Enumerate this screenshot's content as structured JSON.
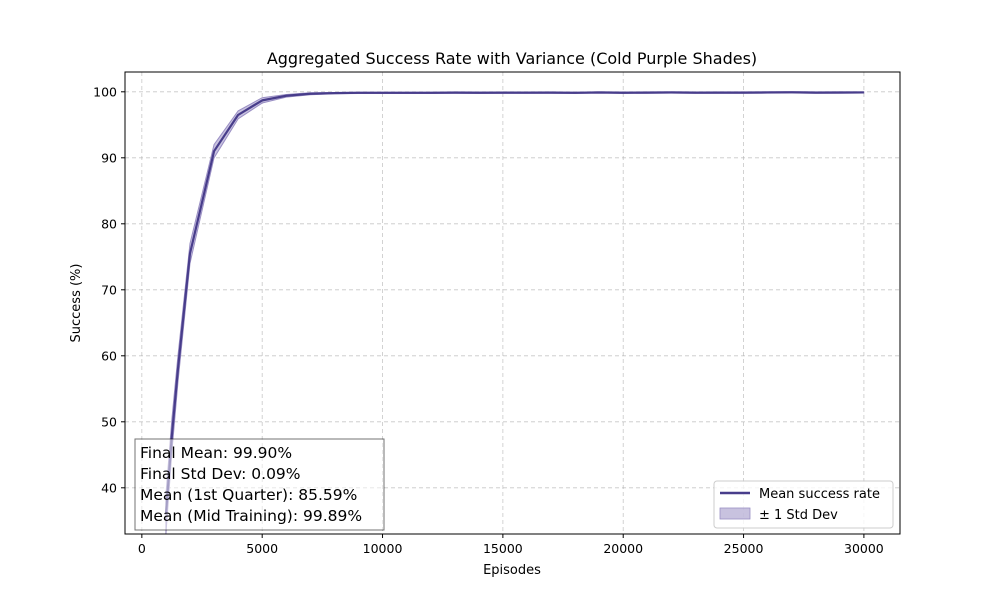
{
  "chart_data": {
    "type": "line",
    "title": "Aggregated Success Rate with Variance (Cold Purple Shades)",
    "xlabel": "Episodes",
    "ylabel": "Success (%)",
    "xlim": [
      -700,
      31500
    ],
    "ylim": [
      33,
      103
    ],
    "xticks": [
      0,
      5000,
      10000,
      15000,
      20000,
      25000,
      30000
    ],
    "yticks": [
      40,
      50,
      60,
      70,
      80,
      90,
      100
    ],
    "grid": true,
    "legend_position": "lower-right",
    "colors": {
      "line": "#483d8b",
      "band": "#9a8fc4"
    },
    "series": [
      {
        "name": "Mean success rate",
        "x": [
          1000,
          1250,
          1500,
          2000,
          3000,
          4000,
          5000,
          6000,
          7000,
          8000,
          9000,
          10000,
          11000,
          12000,
          13000,
          14000,
          15000,
          16000,
          17000,
          18000,
          19000,
          20000,
          21000,
          22000,
          23000,
          24000,
          25000,
          26000,
          27000,
          28000,
          29000,
          30000
        ],
        "y": [
          36,
          48,
          58,
          75.5,
          91,
          96.5,
          98.7,
          99.4,
          99.7,
          99.8,
          99.85,
          99.85,
          99.85,
          99.85,
          99.88,
          99.86,
          99.87,
          99.87,
          99.88,
          99.85,
          99.9,
          99.86,
          99.88,
          99.9,
          99.87,
          99.88,
          99.88,
          99.9,
          99.92,
          99.88,
          99.89,
          99.9
        ],
        "std": [
          3.0,
          2.5,
          2.0,
          1.5,
          1.0,
          0.6,
          0.4,
          0.2,
          0.15,
          0.1,
          0.1,
          0.1,
          0.1,
          0.1,
          0.1,
          0.1,
          0.1,
          0.1,
          0.1,
          0.1,
          0.1,
          0.1,
          0.1,
          0.1,
          0.1,
          0.1,
          0.1,
          0.1,
          0.1,
          0.1,
          0.1,
          0.09
        ]
      }
    ],
    "band_label": "± 1 Std Dev",
    "annotation": [
      "Final Mean: 99.90%",
      "Final Std Dev: 0.09%",
      "Mean (1st Quarter): 85.59%",
      "Mean (Mid Training): 99.89%"
    ]
  }
}
